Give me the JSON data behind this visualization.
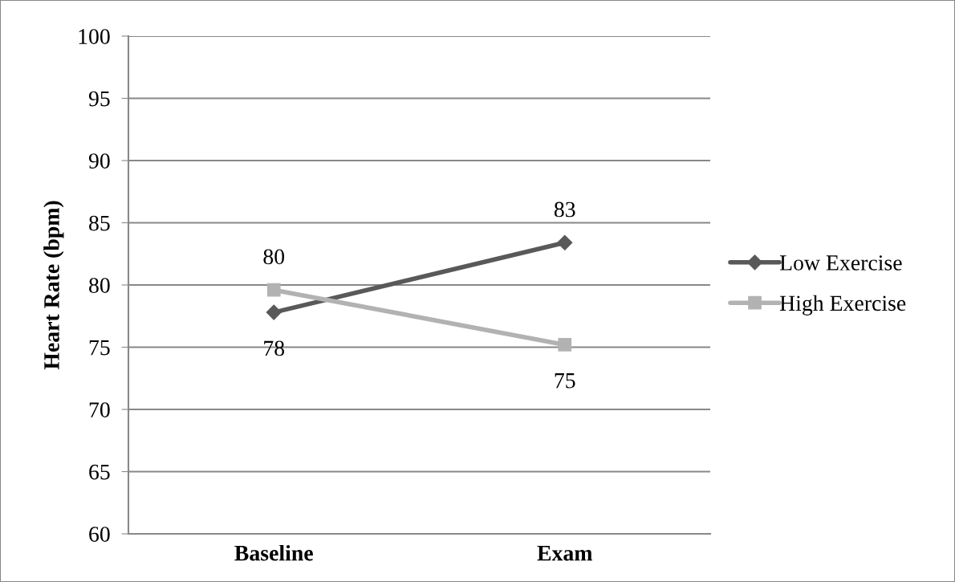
{
  "chart_data": {
    "type": "line",
    "ylabel": "Heart Rate (bpm)",
    "categories": [
      "Baseline",
      "Exam"
    ],
    "series": [
      {
        "name": "Low Exercise",
        "color": "#595959",
        "marker": "diamond",
        "values": [
          77.8,
          83.4
        ],
        "value_labels": [
          "78",
          "83"
        ]
      },
      {
        "name": "High Exercise",
        "color": "#b2b2b2",
        "marker": "square",
        "values": [
          79.6,
          75.2
        ],
        "value_labels": [
          "80",
          "75"
        ]
      }
    ],
    "ylim": [
      60,
      100
    ],
    "yticks": [
      60,
      65,
      70,
      75,
      80,
      85,
      90,
      95,
      100
    ],
    "grid": "y",
    "legend": "right"
  }
}
